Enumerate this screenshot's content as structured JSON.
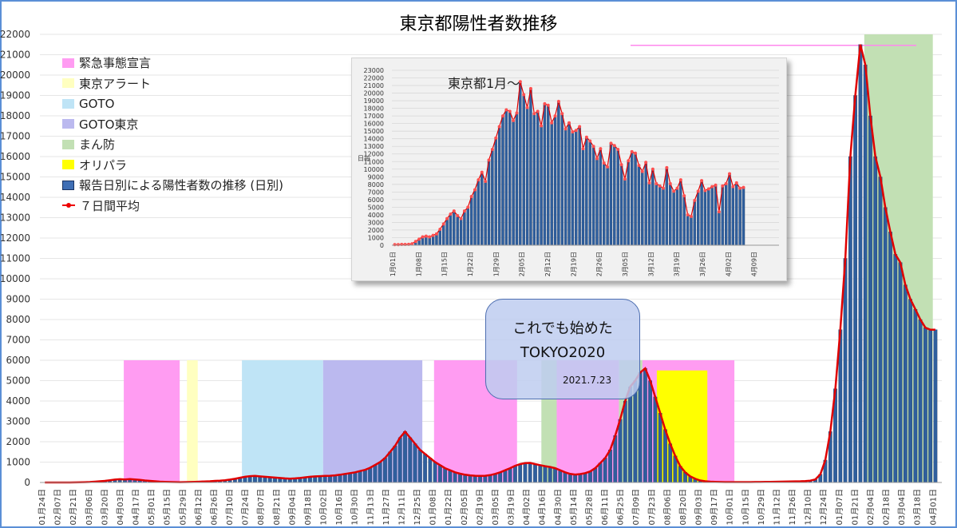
{
  "title": "東京都陽性者数推移",
  "legend": [
    {
      "label": "緊急事態宣言",
      "color": "#ff9cf2",
      "kind": "box"
    },
    {
      "label": "東京アラート",
      "color": "#ffffc0",
      "kind": "box"
    },
    {
      "label": "GOTO",
      "color": "#bfe4f6",
      "kind": "box"
    },
    {
      "label": "GOTO東京",
      "color": "#bbb9ef",
      "kind": "box"
    },
    {
      "label": "まん防",
      "color": "#c2e0b4",
      "kind": "box"
    },
    {
      "label": "オリパラ",
      "color": "#ffff00",
      "kind": "box"
    },
    {
      "label": "報告日別による陽性者数の推移 (日別)",
      "color": "#3f6fb5",
      "kind": "bar"
    },
    {
      "label": "７日間平均",
      "color": "#e00000",
      "kind": "line"
    }
  ],
  "callout": {
    "line1": "これでも始めた",
    "line2": "TOKYO2020",
    "date": "2021.7.23"
  },
  "inset": {
    "title": "東京都1月～"
  },
  "chart_data": [
    {
      "type": "bar",
      "title": "東京都陽性者数推移",
      "ylim": [
        0,
        22000
      ],
      "y_ticks": [
        0,
        1000,
        2000,
        3000,
        4000,
        5000,
        6000,
        7000,
        8000,
        9000,
        10000,
        11000,
        12000,
        13000,
        14000,
        15000,
        16000,
        17000,
        18000,
        19000,
        20000,
        21000,
        22000
      ],
      "x_tick_labels": [
        "01月24日",
        "02月07日",
        "02月21日",
        "03月06日",
        "03月20日",
        "04月03日",
        "04月17日",
        "05月01日",
        "05月15日",
        "05月29日",
        "06月12日",
        "06月26日",
        "07月10日",
        "07月24日",
        "08月07日",
        "08月21日",
        "09月04日",
        "09月18日",
        "10月02日",
        "10月16日",
        "10月30日",
        "11月13日",
        "11月27日",
        "12月11日",
        "12月25日",
        "01月08日",
        "01月22日",
        "02月05日",
        "02月19日",
        "03月05日",
        "03月19日",
        "04月02日",
        "04月16日",
        "04月30日",
        "05月14日",
        "05月28日",
        "06月11日",
        "06月25日",
        "07月09日",
        "07月23日",
        "08月06日",
        "08月20日",
        "09月03日",
        "09月17日",
        "10月01日",
        "10月15日",
        "10月29日",
        "11月12日",
        "11月26日",
        "12月10日",
        "12月24日",
        "01月07日",
        "01月21日",
        "02月04日",
        "02月18日",
        "03月04日",
        "03月18日",
        "04月01日"
      ],
      "series": [
        {
          "name": "報告日別による陽性者数の推移 (日別)",
          "kind": "bar",
          "values": [
            0,
            0,
            0,
            0,
            0,
            0,
            5,
            10,
            15,
            25,
            40,
            60,
            80,
            110,
            140,
            160,
            150,
            170,
            150,
            130,
            100,
            80,
            60,
            40,
            30,
            25,
            20,
            15,
            20,
            25,
            30,
            40,
            50,
            60,
            80,
            90,
            110,
            140,
            180,
            230,
            280,
            310,
            320,
            300,
            280,
            260,
            240,
            220,
            200,
            190,
            200,
            220,
            250,
            280,
            300,
            310,
            320,
            330,
            350,
            380,
            420,
            460,
            500,
            560,
            620,
            720,
            860,
            1000,
            1200,
            1500,
            1800,
            2200,
            2500,
            2200,
            1900,
            1600,
            1400,
            1200,
            1000,
            850,
            700,
            600,
            500,
            430,
            380,
            350,
            330,
            320,
            330,
            360,
            420,
            500,
            600,
            700,
            820,
            900,
            950,
            960,
            900,
            850,
            800,
            760,
            700,
            600,
            500,
            420,
            390,
            410,
            460,
            540,
            700,
            950,
            1200,
            1600,
            2300,
            3100,
            4000,
            4700,
            5000,
            5400,
            5600,
            5000,
            4200,
            3400,
            2600,
            1900,
            1300,
            800,
            500,
            300,
            180,
            100,
            60,
            40,
            30,
            25,
            20,
            18,
            18,
            20,
            20,
            20,
            22,
            25,
            28,
            30,
            35,
            40,
            45,
            50,
            55,
            60,
            70,
            90,
            150,
            400,
            1100,
            2500,
            4600,
            7500,
            11000,
            16000,
            19000,
            21500,
            20500,
            18000,
            16000,
            15000,
            13500,
            12300,
            11200,
            10800,
            9700,
            9000,
            8500,
            8000,
            7600,
            7500,
            7500
          ]
        },
        {
          "name": "７日間平均",
          "kind": "line",
          "values": [
            0,
            0,
            0,
            0,
            0,
            0,
            5,
            10,
            15,
            25,
            40,
            60,
            80,
            110,
            140,
            160,
            150,
            170,
            150,
            130,
            100,
            80,
            60,
            40,
            30,
            25,
            20,
            15,
            20,
            25,
            30,
            40,
            50,
            60,
            80,
            90,
            110,
            140,
            180,
            230,
            280,
            310,
            320,
            300,
            280,
            260,
            240,
            220,
            200,
            190,
            200,
            220,
            250,
            280,
            300,
            310,
            320,
            330,
            350,
            380,
            420,
            460,
            500,
            560,
            620,
            720,
            860,
            1000,
            1200,
            1500,
            1800,
            2200,
            2500,
            2200,
            1900,
            1600,
            1400,
            1200,
            1000,
            850,
            700,
            600,
            500,
            430,
            380,
            350,
            330,
            320,
            330,
            360,
            420,
            500,
            600,
            700,
            820,
            900,
            950,
            960,
            900,
            850,
            800,
            760,
            700,
            600,
            500,
            420,
            390,
            410,
            460,
            540,
            700,
            950,
            1200,
            1600,
            2300,
            3100,
            4000,
            4700,
            5000,
            5400,
            5600,
            5000,
            4200,
            3400,
            2600,
            1900,
            1300,
            800,
            500,
            300,
            180,
            100,
            60,
            40,
            30,
            25,
            20,
            18,
            18,
            20,
            20,
            20,
            22,
            25,
            28,
            30,
            35,
            40,
            45,
            50,
            55,
            60,
            70,
            90,
            150,
            400,
            1100,
            2500,
            4600,
            7500,
            11000,
            16000,
            19000,
            21500,
            20500,
            18000,
            16000,
            15000,
            13500,
            12300,
            11200,
            10800,
            9700,
            9000,
            8500,
            8000,
            7600,
            7500,
            7500
          ]
        }
      ],
      "bands": [
        {
          "label": "緊急事態宣言",
          "from": "04月07日",
          "to": "05月25日",
          "height": 6000
        },
        {
          "label": "東京アラート",
          "from": "06月02日",
          "to": "06月11日",
          "height": 6000
        },
        {
          "label": "GOTO",
          "from": "07月22日",
          "to": "10月01日",
          "height": 6000
        },
        {
          "label": "GOTO東京",
          "from": "10月01日",
          "to": "12月28日",
          "height": 6000
        },
        {
          "label": "緊急事態宣言",
          "from": "01月08日",
          "to": "03月21日",
          "height": 6000
        },
        {
          "label": "まん防",
          "from": "04月12日",
          "to": "04月25日",
          "height": 6000
        },
        {
          "label": "緊急事態宣言",
          "from": "04月25日",
          "to": "06月20日",
          "height": 6000
        },
        {
          "label": "まん防",
          "from": "06月21日",
          "to": "07月11日",
          "height": 6000
        },
        {
          "label": "緊急事態宣言",
          "from": "07月12日",
          "to": "09月30日",
          "height": 6000
        },
        {
          "label": "オリパラ",
          "from": "07月23日",
          "to": "09月05日",
          "height": 5500
        },
        {
          "label": "まん防",
          "from": "01月21日",
          "to": "03月21日",
          "height": 22000
        }
      ],
      "reference_line": {
        "y": 21576,
        "color": "#ff88ee"
      }
    },
    {
      "type": "bar",
      "title": "東京都1月～",
      "ylabel": "日毎",
      "ylim": [
        0,
        23000
      ],
      "y_ticks": [
        0,
        1000,
        2000,
        3000,
        4000,
        5000,
        6000,
        7000,
        8000,
        9000,
        10000,
        11000,
        12000,
        13000,
        14000,
        15000,
        16000,
        17000,
        18000,
        19000,
        20000,
        21000,
        22000,
        23000
      ],
      "x_tick_labels": [
        "1月01日",
        "1月08日",
        "1月15日",
        "1月22日",
        "1月29日",
        "2月05日",
        "2月12日",
        "2月19日",
        "2月26日",
        "3月05日",
        "3月12日",
        "3月19日",
        "3月26日",
        "4月02日",
        "4月09日"
      ],
      "series": [
        {
          "name": "日別",
          "kind": "bar",
          "values": [
            80,
            80,
            100,
            100,
            120,
            200,
            500,
            800,
            1100,
            1200,
            1100,
            1300,
            1500,
            2100,
            2800,
            3500,
            4100,
            4500,
            3900,
            3500,
            4500,
            5000,
            6400,
            7300,
            8600,
            9600,
            8400,
            11200,
            12600,
            14100,
            15600,
            17000,
            17800,
            17600,
            16400,
            17400,
            21500,
            19800,
            18100,
            20600,
            17300,
            17600,
            15700,
            18600,
            18400,
            16100,
            17000,
            18900,
            17300,
            15300,
            16100,
            14900,
            15100,
            15600,
            12700,
            14200,
            13700,
            13000,
            11400,
            12700,
            10800,
            10300,
            13400,
            13100,
            12600,
            10600,
            8700,
            11100,
            12300,
            12100,
            10500,
            9700,
            10900,
            8200,
            10000,
            8100,
            7800,
            7500,
            10200,
            8100,
            7100,
            7500,
            8600,
            6500,
            4000,
            3800,
            5900,
            7100,
            8500,
            7200,
            7400,
            7700,
            7900,
            4400,
            7800,
            8100,
            9400,
            7700,
            8200,
            7500,
            7600
          ]
        },
        {
          "name": "７日間平均",
          "kind": "line",
          "values": [
            80,
            80,
            100,
            100,
            120,
            200,
            500,
            800,
            1100,
            1200,
            1100,
            1300,
            1500,
            2100,
            2800,
            3500,
            4100,
            4500,
            3900,
            3500,
            4500,
            5000,
            6400,
            7300,
            8600,
            9600,
            8400,
            11200,
            12600,
            14100,
            15600,
            17000,
            17800,
            17600,
            16400,
            17400,
            21500,
            19800,
            18100,
            20600,
            17300,
            17600,
            15700,
            18600,
            18400,
            16100,
            17000,
            18900,
            17300,
            15300,
            16100,
            14900,
            15100,
            15600,
            12700,
            14200,
            13700,
            13000,
            11400,
            12700,
            10800,
            10300,
            13400,
            13100,
            12600,
            10600,
            8700,
            11100,
            12300,
            12100,
            10500,
            9700,
            10900,
            8200,
            10000,
            8100,
            7800,
            7500,
            10200,
            8100,
            7100,
            7500,
            8600,
            6500,
            4000,
            3800,
            5900,
            7100,
            8500,
            7200,
            7400,
            7700,
            7900,
            4400,
            7800,
            8100,
            9400,
            7700,
            8200,
            7500,
            7600
          ]
        }
      ]
    }
  ]
}
